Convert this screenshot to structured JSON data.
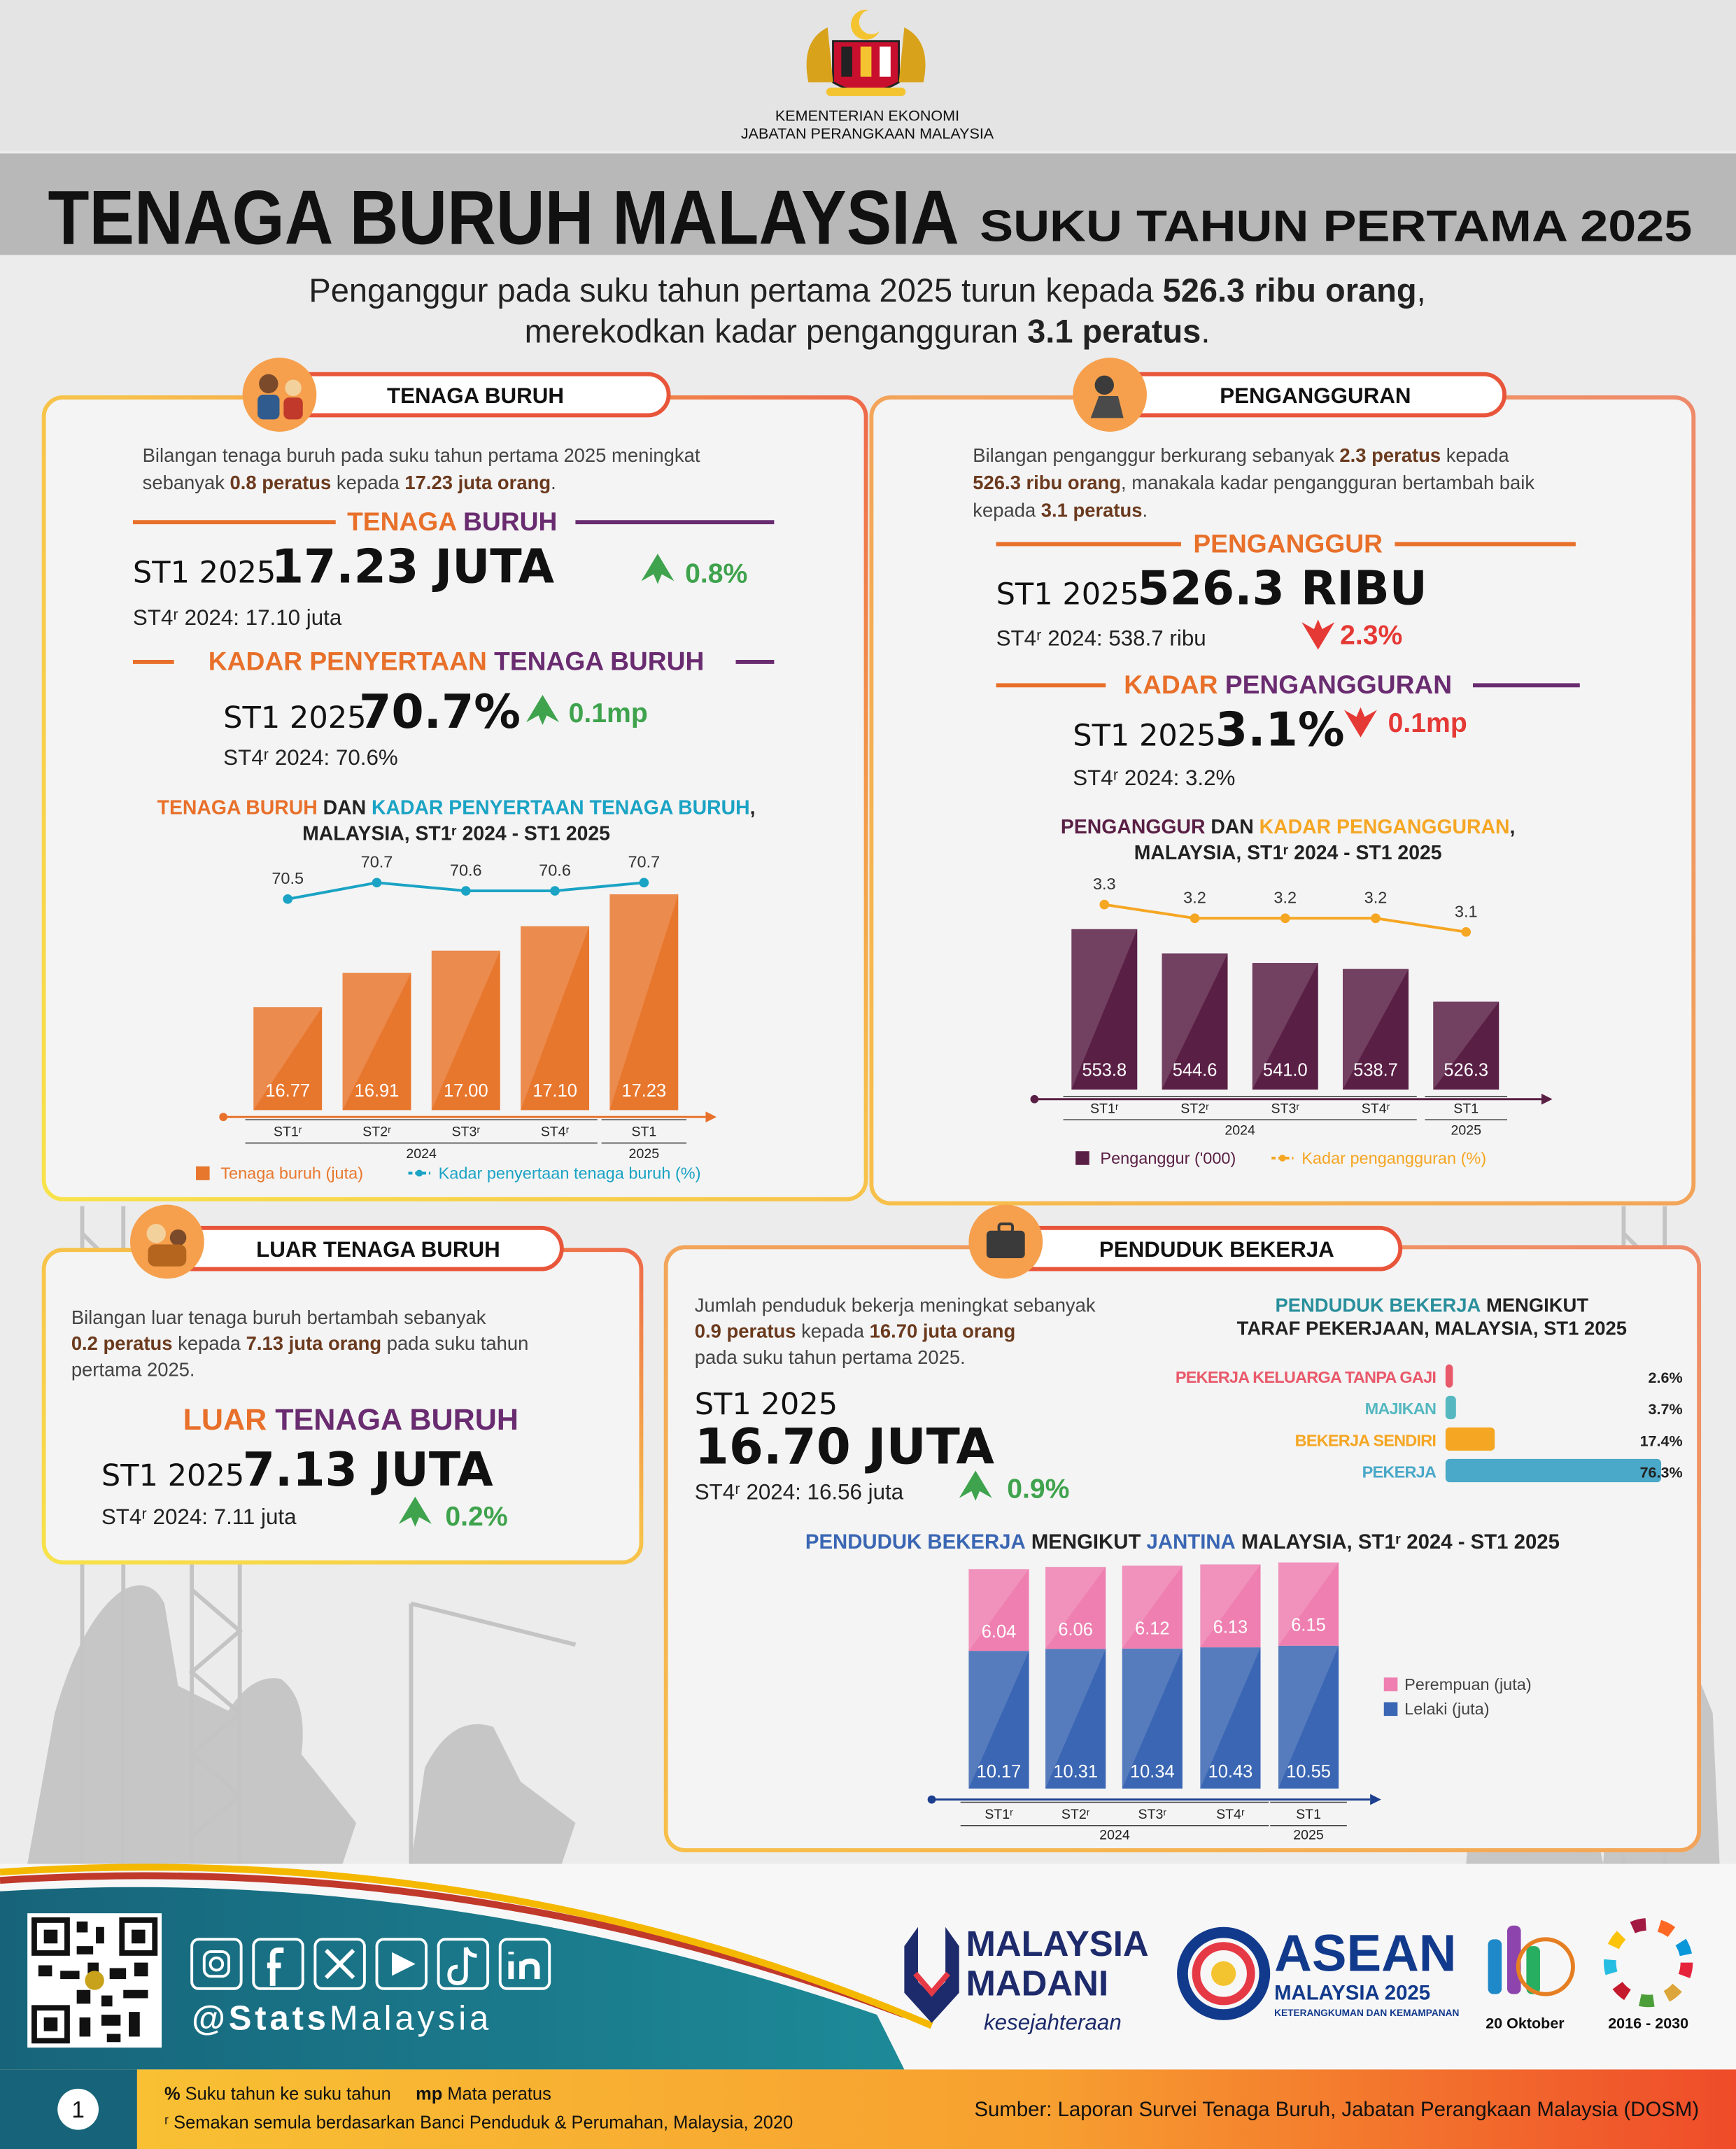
{
  "header": {
    "ministry": "KEMENTERIAN EKONOMI",
    "department": "JABATAN PERANGKAAN MALAYSIA",
    "title": "TENAGA BURUH MALAYSIA",
    "subtitle": "SUKU TAHUN PERTAMA 2025",
    "headline": [
      [
        "Penganggur pada suku tahun pertama 2025 turun kepada ",
        {
          "text": "526.3 ribu orang",
          "bold": true
        },
        ","
      ],
      [
        "merekodkan kadar pengangguran ",
        {
          "text": "3.1 peratus",
          "bold": true
        },
        "."
      ]
    ]
  },
  "labour_force": {
    "title": "TENAGA BURUH",
    "summary": [
      [
        "Bilangan tenaga buruh pada suku tahun pertama 2025 meningkat"
      ],
      [
        "sebanyak ",
        {
          "text": "0.8 peratus",
          "bold": true,
          "color": "#6b3a1e"
        },
        " kepada ",
        {
          "text": "17.23 juta orang",
          "bold": true,
          "color": "#6b3a1e"
        },
        "."
      ]
    ],
    "indicators": [
      {
        "heading": [
          [
            {
              "text": "TENAGA ",
              "color": "#e8702a"
            },
            {
              "text": "BURUH",
              "color": "#6a2c70"
            }
          ]
        ],
        "period": "ST1 2025",
        "value": "17.23 JUTA",
        "change": "0.8%",
        "direction": "up",
        "previous": "ST4ʳ 2024: 17.10 juta"
      },
      {
        "heading": [
          [
            {
              "text": "KADAR PENYERTAAN ",
              "color": "#e8702a"
            },
            {
              "text": "TENAGA BURUH",
              "color": "#6a2c70"
            }
          ]
        ],
        "period": "ST1 2025",
        "value": "70.7%",
        "change": "0.1mp",
        "direction": "up",
        "previous": "ST4ʳ 2024: 70.6%"
      }
    ],
    "chart": {
      "type": "bar-line",
      "title": [
        [
          {
            "text": "TENAGA BURUH",
            "color": "#e8702a"
          },
          " DAN ",
          {
            "text": "KADAR PENYERTAAN TENAGA BURUH",
            "color": "#1aa3c4"
          },
          ","
        ],
        [
          "MALAYSIA, ST1ʳ 2024 - ST1 2025"
        ]
      ],
      "categories": [
        "ST1ʳ",
        "ST2ʳ",
        "ST3ʳ",
        "ST4ʳ",
        "ST1"
      ],
      "years": [
        "2024",
        "2025"
      ],
      "ylim": [
        16.35,
        17.3
      ],
      "y2lim": [
        70,
        71
      ],
      "series": [
        {
          "name": "Tenaga buruh (juta)",
          "type": "bar",
          "color": "#e8772e",
          "values": [
            16.77,
            16.91,
            17.0,
            17.1,
            17.23
          ],
          "value_labels": [
            "16.77",
            "16.91",
            "17.00",
            "17.10",
            "17.23"
          ]
        },
        {
          "name": "Kadar penyertaan tenaga buruh (%)",
          "type": "line",
          "axis": "y2",
          "color": "#1aa3c4",
          "values": [
            70.5,
            70.7,
            70.6,
            70.6,
            70.7
          ]
        }
      ]
    }
  },
  "unemployment": {
    "title": "PENGANGGURAN",
    "summary": [
      [
        "Bilangan penganggur berkurang sebanyak ",
        {
          "text": "2.3 peratus",
          "bold": true,
          "color": "#6b3a1e"
        },
        " kepada"
      ],
      [
        {
          "text": "526.3 ribu orang",
          "bold": true,
          "color": "#6b3a1e"
        },
        ", manakala kadar pengangguran bertambah baik"
      ],
      [
        "kepada ",
        {
          "text": "3.1 peratus",
          "bold": true,
          "color": "#6b3a1e"
        },
        "."
      ]
    ],
    "indicators": [
      {
        "heading": [
          [
            {
              "text": "PENGANGGUR",
              "color": "#e8702a"
            }
          ]
        ],
        "period": "ST1 2025",
        "value": "526.3 RIBU",
        "change": "2.3%",
        "direction": "down",
        "previous": "ST4ʳ 2024: 538.7 ribu"
      },
      {
        "heading": [
          [
            {
              "text": "KADAR ",
              "color": "#e8702a"
            },
            {
              "text": "PENGANGGURAN",
              "color": "#6a2c70"
            }
          ]
        ],
        "period": "ST1 2025",
        "value": "3.1%",
        "change": "0.1mp",
        "direction": "down",
        "previous": "ST4ʳ 2024: 3.2%"
      }
    ],
    "chart": {
      "type": "bar-line",
      "title": [
        [
          {
            "text": "PENGANGGUR",
            "color": "#5a1f45"
          },
          " DAN ",
          {
            "text": "KADAR PENGANGGURAN",
            "color": "#f5a623"
          },
          ","
        ],
        [
          "MALAYSIA, ST1ʳ 2024 - ST1 2025"
        ]
      ],
      "categories": [
        "ST1ʳ",
        "ST2ʳ",
        "ST3ʳ",
        "ST4ʳ",
        "ST1"
      ],
      "years": [
        "2024",
        "2025"
      ],
      "ylim": [
        493,
        560
      ],
      "y2lim": [
        3.0,
        3.5
      ],
      "series": [
        {
          "name": "Penganggur ('000)",
          "type": "bar",
          "color": "#5a1f45",
          "values": [
            553.8,
            544.6,
            541.0,
            538.7,
            526.3
          ],
          "value_labels": [
            "553.8",
            "544.6",
            "541.0",
            "538.7",
            "526.3"
          ]
        },
        {
          "name": "Kadar pengangguran (%)",
          "type": "line",
          "axis": "y2",
          "color": "#f5a623",
          "values": [
            3.3,
            3.2,
            3.2,
            3.2,
            3.1
          ]
        }
      ]
    }
  },
  "outside_labour_force": {
    "title": "LUAR TENAGA BURUH",
    "summary": [
      [
        "Bilangan luar tenaga buruh bertambah sebanyak"
      ],
      [
        {
          "text": "0.2 peratus",
          "bold": true,
          "color": "#6b3a1e"
        },
        " kepada ",
        {
          "text": "7.13 juta orang",
          "bold": true,
          "color": "#6b3a1e"
        },
        " pada suku tahun"
      ],
      [
        "pertama 2025."
      ]
    ],
    "indicators": [
      {
        "heading": [
          [
            {
              "text": "LUAR ",
              "color": "#e8702a"
            },
            {
              "text": "TENAGA BURUH",
              "color": "#6a2c70"
            }
          ]
        ],
        "period": "ST1 2025",
        "value": "7.13 JUTA",
        "change": "0.2%",
        "direction": "up",
        "previous": "ST4ʳ 2024: 7.11 juta"
      }
    ]
  },
  "employed": {
    "title": "PENDUDUK BEKERJA",
    "summary": [
      [
        "Jumlah penduduk bekerja meningkat sebanyak"
      ],
      [
        {
          "text": "0.9 peratus",
          "bold": true,
          "color": "#6b3a1e"
        },
        " kepada ",
        {
          "text": "16.70 juta orang",
          "bold": true,
          "color": "#6b3a1e"
        }
      ],
      [
        "pada suku tahun pertama 2025."
      ]
    ],
    "indicators": [
      {
        "period": "ST1 2025",
        "value": "16.70 JUTA",
        "change": "0.9%",
        "direction": "up",
        "previous": "ST4ʳ 2024: 16.56 juta"
      }
    ],
    "status_chart": {
      "type": "hbar",
      "title": [
        [
          {
            "text": "PENDUDUK BEKERJA",
            "color": "#2a8f9c"
          },
          " MENGIKUT"
        ],
        [
          "TARAF PEKERJAAN, MALAYSIA, ST1 2025"
        ]
      ],
      "categories": [
        "PEKERJA KELUARGA TANPA GAJI",
        "MAJIKAN",
        "BEKERJA SENDIRI",
        "PEKERJA"
      ],
      "values": [
        2.6,
        3.7,
        17.4,
        76.3
      ],
      "value_labels": [
        "2.6%",
        "3.7%",
        "17.4%",
        "76.3%"
      ],
      "colors": [
        "#e8596a",
        "#55b8c0",
        "#f5a623",
        "#4aa8c8"
      ],
      "xlim": [
        0,
        80
      ]
    },
    "gender_chart": {
      "type": "stacked-bar",
      "title": [
        [
          {
            "text": "PENDUDUK BEKERJA",
            "color": "#3a66b3"
          },
          " MENGIKUT ",
          {
            "text": "JANTINA",
            "color": "#3a66b3"
          },
          " MALAYSIA, ST1ʳ 2024 - ST1 2025"
        ]
      ],
      "categories": [
        "ST1ʳ",
        "ST2ʳ",
        "ST3ʳ",
        "ST4ʳ",
        "ST1"
      ],
      "years": [
        "2024",
        "2025"
      ],
      "ylim": [
        0,
        16.4
      ],
      "series": [
        {
          "name": "Lelaki (juta)",
          "color": "#3a66b3",
          "values": [
            10.17,
            10.31,
            10.34,
            10.43,
            10.55
          ]
        },
        {
          "name": "Perempuan (juta)",
          "color": "#ee7fb0",
          "values": [
            6.04,
            6.06,
            6.12,
            6.13,
            6.15
          ]
        }
      ]
    }
  },
  "footer": {
    "handle": [
      [
        {
          "text": "@Stats",
          "bold": true
        },
        "Malaysia"
      ]
    ],
    "logos": {
      "madani": [
        "MALAYSIA",
        "MADANI",
        "kesejahteraan"
      ],
      "asean": [
        "ASEAN",
        "MALAYSIA 2025",
        "KETERANGKUMAN DAN KEMAMPANAN"
      ],
      "statistics_day": "20 Oktober",
      "sdg": "2016 - 2030"
    },
    "page": "1",
    "notes": [
      [
        {
          "text": "%",
          "bold": true
        },
        " Suku tahun ke suku tahun     ",
        {
          "text": "mp",
          "bold": true
        },
        " Mata peratus"
      ],
      [
        "ʳ Semakan semula berdasarkan Banci Penduduk & Perumahan, Malaysia, 2020"
      ]
    ],
    "source": "Sumber: Laporan Survei Tenaga Buruh, Jabatan Perangkaan Malaysia (DOSM)"
  }
}
